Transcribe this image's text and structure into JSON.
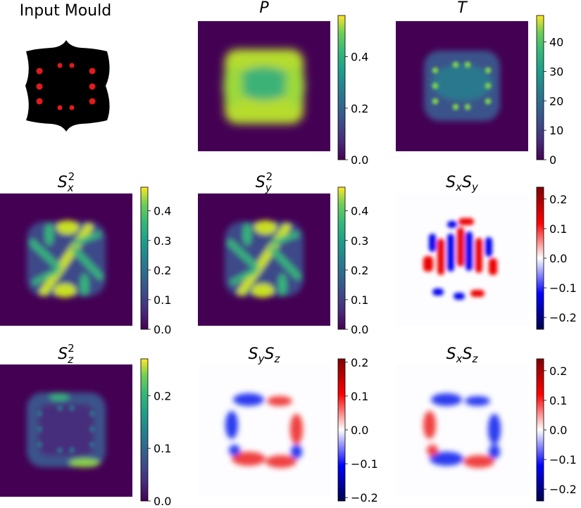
{
  "figure": {
    "mould_title": "Input Mould"
  },
  "chart_data": [
    {
      "type": "heatmap",
      "id": "P",
      "title": "P",
      "title_style": "italic",
      "colormap": "viridis",
      "pattern": "blob",
      "vmin": 0.0,
      "vmax": 0.56,
      "colorbar_ticks": [
        "0.0",
        "0.2",
        "0.4"
      ],
      "colorbar_tick_values": [
        0.0,
        0.2,
        0.4
      ]
    },
    {
      "type": "heatmap",
      "id": "T",
      "title": "T",
      "title_style": "italic",
      "colormap": "viridis",
      "pattern": "dots",
      "vmin": 0,
      "vmax": 49,
      "colorbar_ticks": [
        "0",
        "10",
        "20",
        "30",
        "40"
      ],
      "colorbar_tick_values": [
        0,
        10,
        20,
        30,
        40
      ]
    },
    {
      "type": "heatmap",
      "id": "Sx2",
      "title": "S_x^2",
      "colormap": "viridis",
      "pattern": "cross",
      "vmin": 0.0,
      "vmax": 0.48,
      "colorbar_ticks": [
        "0.0",
        "0.1",
        "0.2",
        "0.3",
        "0.4"
      ],
      "colorbar_tick_values": [
        0.0,
        0.1,
        0.2,
        0.3,
        0.4
      ]
    },
    {
      "type": "heatmap",
      "id": "Sy2",
      "title": "S_y^2",
      "colormap": "viridis",
      "pattern": "cross",
      "vmin": 0.0,
      "vmax": 0.48,
      "colorbar_ticks": [
        "0.0",
        "0.1",
        "0.2",
        "0.3",
        "0.4"
      ],
      "colorbar_tick_values": [
        0.0,
        0.1,
        0.2,
        0.3,
        0.4
      ]
    },
    {
      "type": "heatmap",
      "id": "SxSy",
      "title": "S_x S_y",
      "colormap": "seismic",
      "pattern": "stripes",
      "vmin": -0.24,
      "vmax": 0.24,
      "colorbar_ticks": [
        "0.2",
        "0.1",
        "0.0",
        "−0.1",
        "−0.2"
      ],
      "colorbar_tick_values": [
        0.2,
        0.1,
        0.0,
        -0.1,
        -0.2
      ]
    },
    {
      "type": "heatmap",
      "id": "Sz2",
      "title": "S_z^2",
      "colormap": "viridis",
      "pattern": "ring",
      "vmin": 0.0,
      "vmax": 0.27,
      "colorbar_ticks": [
        "0.0",
        "0.1",
        "0.2"
      ],
      "colorbar_tick_values": [
        0.0,
        0.1,
        0.2
      ]
    },
    {
      "type": "heatmap",
      "id": "SySz",
      "title": "S_y S_z",
      "colormap": "seismic",
      "pattern": "edge",
      "vmin": -0.21,
      "vmax": 0.21,
      "colorbar_ticks": [
        "0.2",
        "0.1",
        "0.0",
        "−0.1",
        "−0.2"
      ],
      "colorbar_tick_values": [
        0.2,
        0.1,
        0.0,
        -0.1,
        -0.2
      ]
    },
    {
      "type": "heatmap",
      "id": "SxSz",
      "title": "S_x S_z",
      "colormap": "seismic",
      "pattern": "edge",
      "vmin": -0.24,
      "vmax": 0.24,
      "colorbar_ticks": [
        "0.2",
        "0.1",
        "0.0",
        "−0.1",
        "−0.2"
      ],
      "colorbar_tick_values": [
        0.2,
        0.1,
        0.0,
        -0.1,
        -0.2
      ]
    }
  ]
}
